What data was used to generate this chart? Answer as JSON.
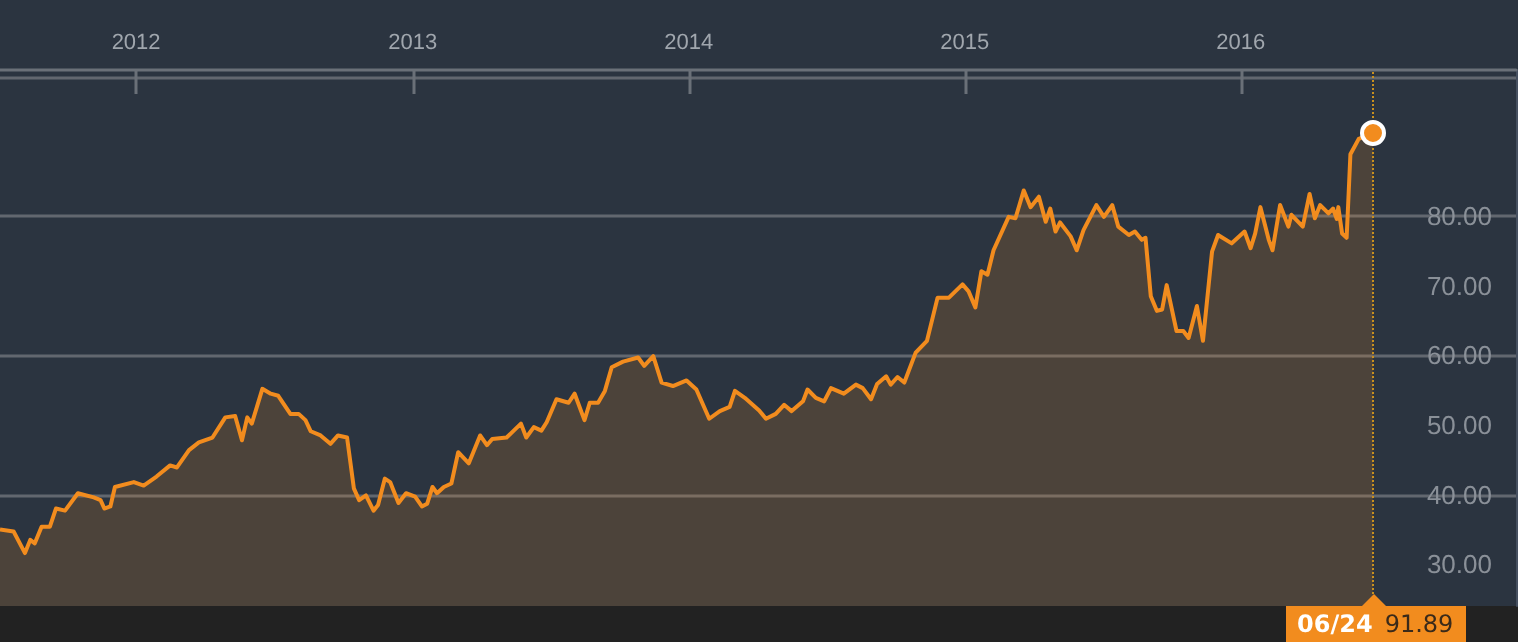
{
  "chart_data": {
    "type": "area",
    "x": [
      "2011-07-05",
      "2011-07-23",
      "2011-08-07",
      "2011-08-14",
      "2011-08-20",
      "2011-08-29",
      "2011-09-09",
      "2011-09-17",
      "2011-09-29",
      "2011-10-16",
      "2011-11-06",
      "2011-11-15",
      "2011-11-20",
      "2011-11-28",
      "2011-12-04",
      "2011-12-29",
      "2012-01-11",
      "2012-01-28",
      "2012-02-15",
      "2012-02-24",
      "2012-03-11",
      "2012-03-24",
      "2012-04-11",
      "2012-04-28",
      "2012-05-11",
      "2012-05-20",
      "2012-05-27",
      "2012-06-02",
      "2012-06-16",
      "2012-06-27",
      "2012-07-07",
      "2012-07-23",
      "2012-08-03",
      "2012-08-12",
      "2012-08-19",
      "2012-09-01",
      "2012-09-14",
      "2012-09-24",
      "2012-10-06",
      "2012-10-15",
      "2012-10-22",
      "2012-10-31",
      "2012-11-10",
      "2012-11-16",
      "2012-11-25",
      "2012-12-02",
      "2012-12-13",
      "2012-12-23",
      "2013-01-04",
      "2013-01-13",
      "2013-01-20",
      "2013-01-27",
      "2013-02-02",
      "2013-02-11",
      "2013-02-21",
      "2013-03-02",
      "2013-03-16",
      "2013-03-31",
      "2013-04-09",
      "2013-04-16",
      "2013-05-05",
      "2013-05-24",
      "2013-05-31",
      "2013-06-10",
      "2013-06-20",
      "2013-06-27",
      "2013-07-10",
      "2013-07-26",
      "2013-08-03",
      "2013-08-16",
      "2013-08-23",
      "2013-09-03",
      "2013-09-12",
      "2013-09-21",
      "2013-10-06",
      "2013-10-26",
      "2013-11-03",
      "2013-11-15",
      "2013-11-26",
      "2013-12-11",
      "2013-12-29",
      "2014-01-11",
      "2014-01-28",
      "2014-02-11",
      "2014-02-24",
      "2014-03-03",
      "2014-03-16",
      "2014-04-04",
      "2014-04-13",
      "2014-04-26",
      "2014-05-07",
      "2014-05-17",
      "2014-06-01",
      "2014-06-07",
      "2014-06-18",
      "2014-06-29",
      "2014-07-08",
      "2014-07-25",
      "2014-08-10",
      "2014-08-19",
      "2014-08-30",
      "2014-09-07",
      "2014-09-19",
      "2014-09-25",
      "2014-10-04",
      "2014-10-13",
      "2014-10-28",
      "2014-11-12",
      "2014-11-26",
      "2014-12-11",
      "2014-12-29",
      "2015-01-06",
      "2015-01-15",
      "2015-01-23",
      "2015-01-31",
      "2015-02-08",
      "2015-02-28",
      "2015-03-09",
      "2015-03-20",
      "2015-03-29",
      "2015-04-09",
      "2015-04-18",
      "2015-04-24",
      "2015-05-01",
      "2015-05-07",
      "2015-05-21",
      "2015-05-29",
      "2015-06-07",
      "2015-06-24",
      "2015-07-04",
      "2015-07-15",
      "2015-07-23",
      "2015-08-06",
      "2015-08-14",
      "2015-08-23",
      "2015-08-28",
      "2015-09-04",
      "2015-09-12",
      "2015-09-19",
      "2015-09-25",
      "2015-10-08",
      "2015-10-17",
      "2015-10-24",
      "2015-11-04",
      "2015-11-12",
      "2015-11-24",
      "2015-12-02",
      "2015-12-20",
      "2016-01-06",
      "2016-01-14",
      "2016-01-20",
      "2016-01-27",
      "2016-02-07",
      "2016-02-12",
      "2016-02-22",
      "2016-03-04",
      "2016-03-08",
      "2016-03-23",
      "2016-04-01",
      "2016-04-08",
      "2016-04-15",
      "2016-04-26",
      "2016-05-02",
      "2016-05-07",
      "2016-05-09",
      "2016-05-14",
      "2016-05-20",
      "2016-05-25",
      "2016-06-05",
      "2016-06-24"
    ],
    "series": [
      {
        "color": "#f28c1e",
        "values": [
          35.0,
          34.7,
          31.6,
          33.5,
          33.0,
          35.4,
          35.4,
          38.0,
          37.7,
          40.2,
          39.6,
          39.2,
          38.0,
          38.3,
          41.1,
          41.8,
          41.3,
          42.6,
          44.2,
          43.9,
          46.4,
          47.5,
          48.2,
          51.1,
          51.3,
          47.8,
          51.1,
          50.2,
          55.2,
          54.5,
          54.2,
          51.6,
          51.6,
          50.7,
          49.1,
          48.5,
          47.3,
          48.5,
          48.2,
          40.9,
          39.2,
          39.9,
          37.7,
          38.5,
          42.3,
          41.8,
          38.8,
          40.2,
          39.7,
          38.3,
          38.7,
          41.1,
          40.2,
          41.1,
          41.6,
          46.1,
          44.5,
          48.5,
          47.1,
          48.0,
          48.2,
          50.2,
          48.2,
          49.7,
          49.2,
          50.4,
          53.7,
          53.2,
          54.5,
          50.7,
          53.2,
          53.2,
          54.9,
          58.3,
          59.1,
          59.7,
          58.5,
          59.9,
          56.1,
          55.6,
          56.4,
          55.1,
          50.9,
          52.0,
          52.6,
          54.9,
          53.9,
          52.1,
          50.9,
          51.6,
          52.9,
          52.0,
          53.4,
          55.1,
          53.9,
          53.4,
          55.3,
          54.5,
          55.8,
          55.3,
          53.7,
          55.9,
          57.0,
          55.8,
          56.9,
          56.1,
          60.4,
          62.1,
          68.3,
          68.3,
          70.2,
          69.2,
          66.9,
          72.1,
          71.6,
          75.1,
          79.9,
          79.7,
          83.7,
          81.3,
          82.8,
          79.2,
          81.1,
          77.8,
          79.1,
          77.1,
          75.1,
          78.0,
          81.6,
          79.9,
          81.6,
          78.5,
          77.3,
          77.8,
          76.6,
          76.9,
          68.5,
          66.4,
          66.6,
          70.1,
          63.5,
          63.5,
          62.5,
          67.1,
          62.1,
          74.9,
          77.3,
          76.1,
          77.8,
          75.4,
          77.5,
          81.3,
          76.6,
          75.1,
          81.6,
          78.5,
          80.2,
          78.5,
          83.2,
          79.7,
          81.6,
          80.4,
          81.1,
          79.6,
          81.3,
          77.5,
          76.9,
          88.9,
          91.1,
          91.89
        ]
      }
    ],
    "xlim": [
      "2011-07-05",
      "2016-12-30"
    ],
    "xticks": [
      {
        "value": "2012-01-01",
        "label": "2012"
      },
      {
        "value": "2013-01-01",
        "label": "2013"
      },
      {
        "value": "2014-01-01",
        "label": "2014"
      },
      {
        "value": "2015-01-01",
        "label": "2015"
      },
      {
        "value": "2016-01-01",
        "label": "2016"
      }
    ],
    "ylim": [
      24,
      101
    ],
    "yticks": [
      {
        "value": 30,
        "label": "30.00"
      },
      {
        "value": 40,
        "label": "40.00"
      },
      {
        "value": 50,
        "label": "50.00"
      },
      {
        "value": 60,
        "label": "60.00"
      },
      {
        "value": 70,
        "label": "70.00"
      },
      {
        "value": 80,
        "label": "80.00"
      }
    ],
    "grid": "y",
    "marker": "none",
    "ref_lines": [
      {
        "axis": "x",
        "value": "2016-06-24",
        "label": "06/24",
        "color": "#c8901e",
        "line_style": "dotted"
      }
    ],
    "annotations": [
      "91.89"
    ]
  }
}
